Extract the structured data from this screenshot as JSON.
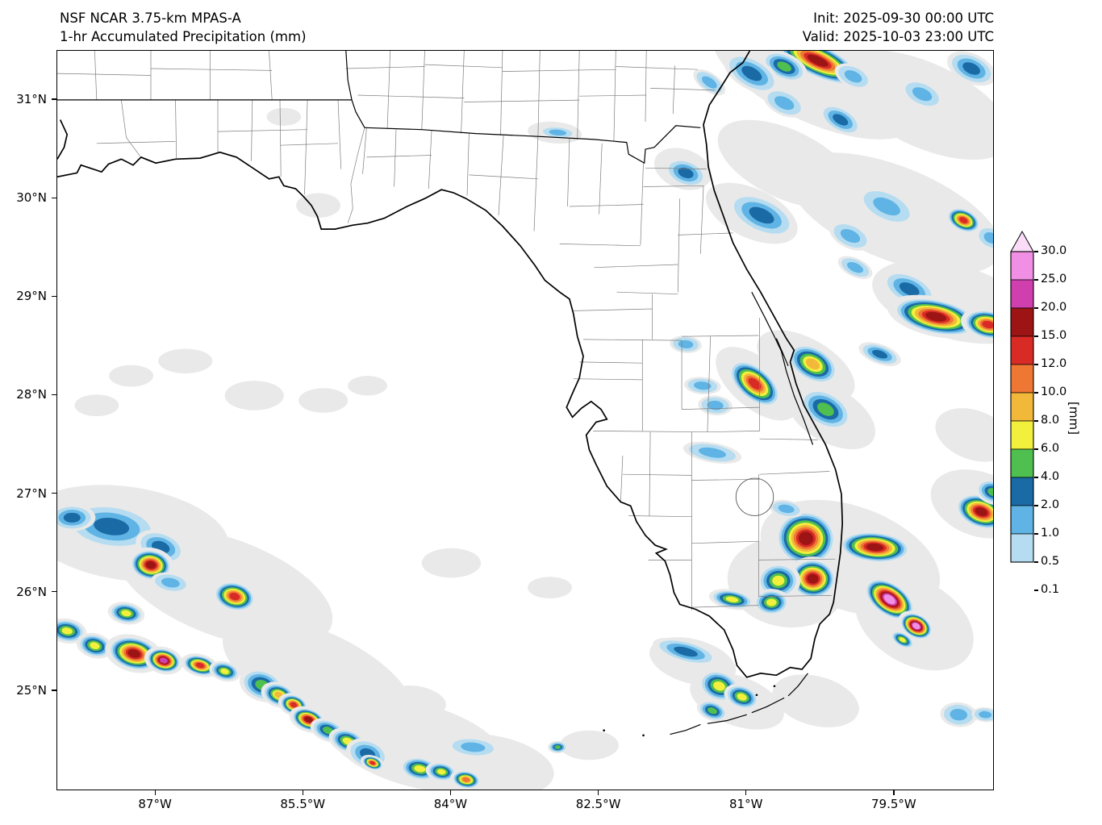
{
  "header": {
    "model_line": "NSF NCAR 3.75-km MPAS-A",
    "product_line": "1-hr Accumulated Precipitation (mm)",
    "init_label": "Init: 2025-09-30 00:00 UTC",
    "valid_label": "Valid: 2025-10-03 23:00 UTC"
  },
  "axes": {
    "lat_ticks": [
      {
        "label": "31°N",
        "deg": 31
      },
      {
        "label": "30°N",
        "deg": 30
      },
      {
        "label": "29°N",
        "deg": 29
      },
      {
        "label": "28°N",
        "deg": 28
      },
      {
        "label": "27°N",
        "deg": 27
      },
      {
        "label": "26°N",
        "deg": 26
      },
      {
        "label": "25°N",
        "deg": 25
      }
    ],
    "lon_ticks": [
      {
        "label": "87°W",
        "deg": -87
      },
      {
        "label": "85.5°W",
        "deg": -85.5
      },
      {
        "label": "84°W",
        "deg": -84
      },
      {
        "label": "82.5°W",
        "deg": -82.5
      },
      {
        "label": "81°W",
        "deg": -81
      },
      {
        "label": "79.5°W",
        "deg": -79.5
      }
    ]
  },
  "colorbar": {
    "unit": "[mm]",
    "tick_labels": [
      "30.0",
      "25.0",
      "20.0",
      "15.0",
      "12.0",
      "10.0",
      "8.0",
      "6.0",
      "4.0",
      "2.0",
      "1.0",
      "0.5",
      "0.1"
    ]
  },
  "chart_data": {
    "type": "filled-contour-precipitation-map",
    "title": "NSF NCAR 3.75-km MPAS-A 1-hr Accumulated Precipitation (mm)",
    "region": "Florida, southern Alabama/Georgia, Gulf of Mexico and western Atlantic",
    "units": "mm",
    "extent": {
      "lon_min": -88.0,
      "lon_max": -78.5,
      "lat_min": 24.0,
      "lat_max": 31.5
    },
    "levels_mm": [
      0.1,
      0.5,
      1.0,
      2.0,
      4.0,
      6.0,
      8.0,
      10.0,
      12.0,
      15.0,
      20.0,
      25.0,
      30.0
    ],
    "level_colors": [
      "#e9e9e9",
      "#b5dcf0",
      "#5fb4e5",
      "#1a6aa6",
      "#4fc04f",
      "#f3ef3d",
      "#f2b83a",
      "#ee7733",
      "#d92b26",
      "#9c1414",
      "#cf3fae",
      "#f08fe3"
    ],
    "over_color": "#fadcf8",
    "cells_note": "each cell: [lon, lat, width_deg, height_deg, rotation_deg, peak_mm]",
    "cells": [
      [
        -80.28,
        31.4,
        0.85,
        0.3,
        25,
        16
      ],
      [
        -80.62,
        31.34,
        0.4,
        0.22,
        25,
        5
      ],
      [
        -80.95,
        31.27,
        0.5,
        0.26,
        30,
        2.5
      ],
      [
        -81.38,
        31.18,
        0.3,
        0.15,
        35,
        1.2
      ],
      [
        -79.92,
        31.24,
        0.32,
        0.18,
        25,
        1.2
      ],
      [
        -79.22,
        31.06,
        0.36,
        0.2,
        25,
        1.5
      ],
      [
        -78.72,
        31.32,
        0.42,
        0.24,
        25,
        2.5
      ],
      [
        -80.62,
        30.97,
        0.36,
        0.2,
        25,
        1.3
      ],
      [
        -80.05,
        30.8,
        0.38,
        0.2,
        30,
        2.5
      ],
      [
        -82.92,
        30.67,
        0.3,
        0.1,
        5,
        1.5
      ],
      [
        -81.62,
        30.26,
        0.36,
        0.22,
        20,
        2.5
      ],
      [
        -80.85,
        29.83,
        0.6,
        0.3,
        25,
        3
      ],
      [
        -79.58,
        29.92,
        0.5,
        0.25,
        25,
        1.3
      ],
      [
        -78.8,
        29.78,
        0.32,
        0.2,
        25,
        13
      ],
      [
        -78.52,
        29.6,
        0.26,
        0.18,
        25,
        1.5
      ],
      [
        -79.95,
        29.62,
        0.36,
        0.2,
        25,
        1.5
      ],
      [
        -79.9,
        29.3,
        0.3,
        0.15,
        25,
        1.2
      ],
      [
        -79.35,
        29.08,
        0.48,
        0.25,
        25,
        3
      ],
      [
        -79.08,
        28.8,
        0.8,
        0.32,
        12,
        16
      ],
      [
        -78.55,
        28.72,
        0.45,
        0.26,
        12,
        13
      ],
      [
        -79.65,
        28.42,
        0.36,
        0.16,
        20,
        2.5
      ],
      [
        -80.33,
        28.32,
        0.48,
        0.3,
        30,
        9
      ],
      [
        -81.62,
        28.52,
        0.26,
        0.14,
        5,
        1.5
      ],
      [
        -80.92,
        28.12,
        0.55,
        0.3,
        40,
        14
      ],
      [
        -81.45,
        28.1,
        0.3,
        0.14,
        5,
        1.2
      ],
      [
        -80.2,
        27.86,
        0.48,
        0.3,
        30,
        5
      ],
      [
        -81.32,
        27.9,
        0.28,
        0.16,
        5,
        1.2
      ],
      [
        -81.35,
        27.42,
        0.48,
        0.16,
        10,
        1.2
      ],
      [
        -80.4,
        26.55,
        0.55,
        0.5,
        10,
        16
      ],
      [
        -80.33,
        26.14,
        0.42,
        0.36,
        5,
        18
      ],
      [
        -80.68,
        26.12,
        0.36,
        0.3,
        0,
        7
      ],
      [
        -80.75,
        25.9,
        0.3,
        0.22,
        0,
        7
      ],
      [
        -81.15,
        25.93,
        0.38,
        0.16,
        10,
        6.5
      ],
      [
        -79.7,
        26.46,
        0.65,
        0.28,
        5,
        16
      ],
      [
        -78.62,
        26.82,
        0.48,
        0.3,
        20,
        16
      ],
      [
        -78.5,
        27.02,
        0.3,
        0.2,
        20,
        5
      ],
      [
        -79.55,
        25.93,
        0.52,
        0.3,
        35,
        27
      ],
      [
        -79.28,
        25.66,
        0.32,
        0.22,
        30,
        26
      ],
      [
        -79.42,
        25.52,
        0.22,
        0.12,
        30,
        8
      ],
      [
        -80.6,
        26.85,
        0.28,
        0.14,
        10,
        1.5
      ],
      [
        -81.62,
        25.4,
        0.55,
        0.18,
        15,
        2.5
      ],
      [
        -81.28,
        25.05,
        0.36,
        0.26,
        20,
        7
      ],
      [
        -81.05,
        24.94,
        0.3,
        0.2,
        20,
        8
      ],
      [
        -81.35,
        24.8,
        0.26,
        0.16,
        20,
        5
      ],
      [
        -78.85,
        24.76,
        0.3,
        0.2,
        5,
        1.5
      ],
      [
        -78.58,
        24.76,
        0.22,
        0.12,
        5,
        1.2
      ],
      [
        -87.45,
        26.67,
        0.8,
        0.38,
        8,
        3.8
      ],
      [
        -87.85,
        26.76,
        0.38,
        0.22,
        0,
        2.5
      ],
      [
        -86.95,
        26.46,
        0.42,
        0.26,
        20,
        2.5
      ],
      [
        -87.05,
        26.28,
        0.38,
        0.28,
        10,
        16
      ],
      [
        -86.85,
        26.1,
        0.32,
        0.16,
        10,
        1.5
      ],
      [
        -86.2,
        25.96,
        0.38,
        0.26,
        15,
        14
      ],
      [
        -87.3,
        25.79,
        0.3,
        0.18,
        10,
        7
      ],
      [
        -87.9,
        25.61,
        0.32,
        0.2,
        10,
        7
      ],
      [
        -87.62,
        25.46,
        0.3,
        0.2,
        15,
        7
      ],
      [
        -87.22,
        25.38,
        0.48,
        0.3,
        15,
        16
      ],
      [
        -86.92,
        25.31,
        0.32,
        0.22,
        15,
        22
      ],
      [
        -86.55,
        25.26,
        0.32,
        0.18,
        15,
        13
      ],
      [
        -86.3,
        25.2,
        0.26,
        0.16,
        15,
        8
      ],
      [
        -85.92,
        25.06,
        0.38,
        0.26,
        20,
        5
      ],
      [
        -85.75,
        24.96,
        0.3,
        0.2,
        20,
        9
      ],
      [
        -85.6,
        24.86,
        0.26,
        0.18,
        20,
        14
      ],
      [
        -85.45,
        24.71,
        0.32,
        0.2,
        20,
        17
      ],
      [
        -85.25,
        24.6,
        0.3,
        0.18,
        20,
        5
      ],
      [
        -85.05,
        24.49,
        0.32,
        0.2,
        20,
        7
      ],
      [
        -84.85,
        24.36,
        0.36,
        0.24,
        20,
        3
      ],
      [
        -84.8,
        24.27,
        0.2,
        0.12,
        20,
        13
      ],
      [
        -84.32,
        24.21,
        0.34,
        0.2,
        10,
        7
      ],
      [
        -84.1,
        24.18,
        0.26,
        0.16,
        10,
        7
      ],
      [
        -83.85,
        24.1,
        0.26,
        0.16,
        10,
        12
      ],
      [
        -83.78,
        24.43,
        0.42,
        0.16,
        5,
        1.2
      ],
      [
        -82.92,
        24.43,
        0.16,
        0.1,
        0,
        5
      ]
    ],
    "gray_patches_note": "0.1 mm contour areas: [lon, lat, width_deg, height_deg, rotation_deg]",
    "gray_patches": [
      [
        -80.3,
        31.25,
        2.3,
        0.95,
        25
      ],
      [
        -79.2,
        30.95,
        1.9,
        0.85,
        25
      ],
      [
        -80.6,
        30.35,
        1.5,
        0.7,
        25
      ],
      [
        -79.5,
        29.85,
        2.3,
        0.95,
        22
      ],
      [
        -78.9,
        28.95,
        1.7,
        0.75,
        15
      ],
      [
        -80.4,
        28.3,
        1.1,
        0.55,
        30
      ],
      [
        -80.15,
        27.8,
        1.0,
        0.55,
        30
      ],
      [
        -78.7,
        27.6,
        0.8,
        0.5,
        20
      ],
      [
        -87.3,
        26.6,
        2.1,
        0.95,
        8
      ],
      [
        -86.3,
        26.05,
        2.3,
        1.0,
        20
      ],
      [
        -85.35,
        25.15,
        2.1,
        0.9,
        25
      ],
      [
        -84.35,
        24.45,
        1.9,
        0.85,
        15
      ],
      [
        -83.6,
        24.25,
        1.3,
        0.6,
        10
      ],
      [
        -79.95,
        26.35,
        1.9,
        1.05,
        20
      ],
      [
        -79.3,
        25.7,
        1.3,
        0.85,
        30
      ],
      [
        -78.65,
        26.9,
        1.0,
        0.65,
        20
      ],
      [
        -81.55,
        25.3,
        0.9,
        0.45,
        15
      ],
      [
        -81.1,
        24.9,
        1.0,
        0.5,
        20
      ],
      [
        -86.7,
        28.35,
        0.55,
        0.25,
        0
      ],
      [
        -87.25,
        28.2,
        0.45,
        0.22,
        0
      ],
      [
        -86.0,
        28.0,
        0.6,
        0.3,
        0
      ],
      [
        -85.3,
        27.95,
        0.5,
        0.25,
        0
      ],
      [
        -84.85,
        28.1,
        0.4,
        0.2,
        0
      ],
      [
        -87.6,
        27.9,
        0.45,
        0.22,
        0
      ],
      [
        -85.35,
        29.93,
        0.45,
        0.25,
        0
      ],
      [
        -85.7,
        30.83,
        0.35,
        0.18,
        0
      ],
      [
        -84.0,
        26.3,
        0.6,
        0.3,
        0
      ],
      [
        -83.0,
        26.05,
        0.45,
        0.22,
        0
      ],
      [
        -82.95,
        30.67,
        0.55,
        0.22,
        5
      ],
      [
        -84.35,
        24.9,
        0.6,
        0.3,
        10
      ],
      [
        -80.9,
        28.12,
        1.0,
        0.5,
        40
      ],
      [
        -80.95,
        29.85,
        1.0,
        0.5,
        25
      ],
      [
        -81.65,
        30.3,
        0.6,
        0.4,
        20
      ],
      [
        -82.6,
        24.45,
        0.6,
        0.3,
        0
      ],
      [
        -80.3,
        24.9,
        0.9,
        0.5,
        15
      ],
      [
        -80.6,
        26.1,
        1.2,
        0.9,
        10
      ]
    ]
  }
}
